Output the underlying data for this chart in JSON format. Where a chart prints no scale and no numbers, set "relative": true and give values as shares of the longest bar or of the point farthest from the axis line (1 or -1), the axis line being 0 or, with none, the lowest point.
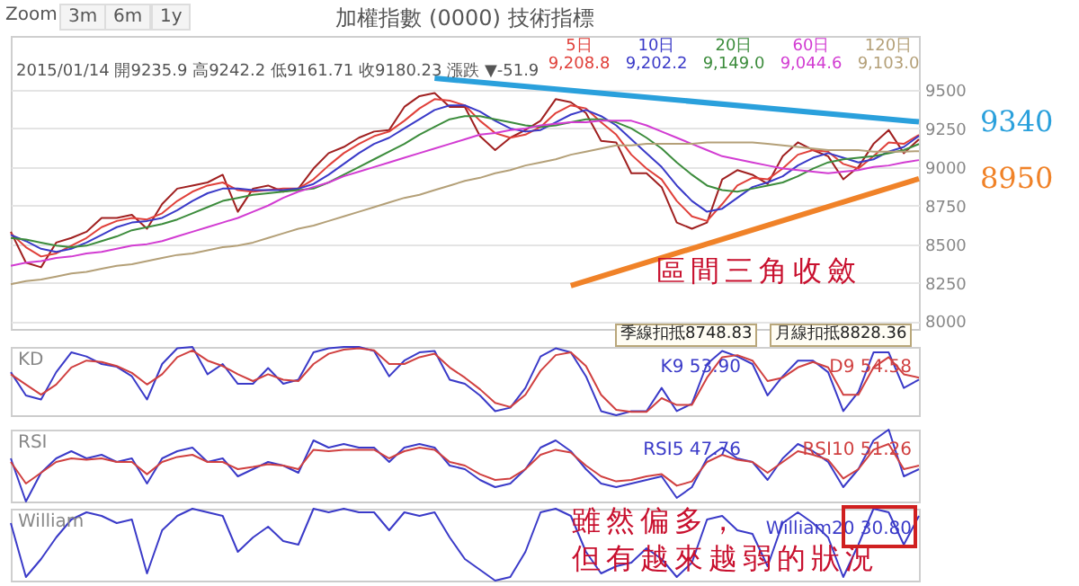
{
  "chart_data": [
    {
      "type": "line",
      "title": "加權指數 (0000) 技術指標",
      "categories": [
        null,
        null,
        null,
        null,
        null,
        null,
        null,
        null,
        null,
        null,
        null,
        null,
        null,
        null,
        null,
        null,
        null,
        null,
        null,
        null,
        null,
        null,
        null,
        null,
        null,
        null,
        null,
        null,
        null,
        null,
        null,
        null,
        null,
        null,
        null,
        null,
        null,
        null,
        null,
        null,
        null,
        null,
        null,
        null,
        null,
        null,
        null,
        null,
        null,
        null,
        null,
        null,
        null,
        null,
        null,
        null,
        null,
        null,
        null,
        null,
        null
      ],
      "ylim": [
        7950,
        9850
      ],
      "yticks": [
        8000,
        8250,
        8500,
        8750,
        9000,
        9250,
        9500
      ],
      "grid": "y",
      "tick_labels": "y",
      "annotations": [
        "Zoom",
        "3m",
        "6m",
        "1y",
        "2015/01/14 開9235.9 高9242.2 低9161.71 收9180.23 漲跌 ▼-51.9",
        "區間三角收斂"
      ],
      "series": [
        {
          "color": "#a02020",
          "values": [
            8580,
            8380,
            8350,
            8510,
            8540,
            8580,
            8670,
            8670,
            8690,
            8600,
            8760,
            8860,
            8880,
            8900,
            8950,
            8710,
            8860,
            8880,
            8840,
            8860,
            8990,
            9090,
            9130,
            9190,
            9230,
            9240,
            9390,
            9460,
            9480,
            9390,
            9390,
            9200,
            9110,
            9190,
            9240,
            9300,
            9440,
            9420,
            9350,
            9170,
            9160,
            8960,
            8960,
            8870,
            8640,
            8600,
            8640,
            8920,
            8980,
            8950,
            8890,
            9070,
            9160,
            9110,
            9070,
            8920,
            9000,
            9150,
            9240,
            9090,
            9180
          ]
        },
        {
          "name": "5日 9,208.8",
          "color": "#e0403a",
          "values": [
            8570,
            8480,
            8420,
            8440,
            8490,
            8540,
            8610,
            8650,
            8670,
            8660,
            8700,
            8780,
            8840,
            8880,
            8900,
            8850,
            8840,
            8850,
            8860,
            8860,
            8920,
            9010,
            9090,
            9150,
            9200,
            9230,
            9300,
            9380,
            9440,
            9430,
            9400,
            9300,
            9220,
            9190,
            9210,
            9260,
            9350,
            9400,
            9380,
            9290,
            9210,
            9080,
            8990,
            8920,
            8780,
            8680,
            8650,
            8760,
            8880,
            8930,
            8920,
            8990,
            9080,
            9110,
            9100,
            9020,
            8990,
            9070,
            9160,
            9150,
            9209
          ]
        },
        {
          "name": "10日 9,202.2",
          "color": "#3a3ac8",
          "values": [
            8560,
            8520,
            8470,
            8450,
            8470,
            8510,
            8560,
            8610,
            8640,
            8650,
            8670,
            8720,
            8780,
            8830,
            8860,
            8860,
            8850,
            8850,
            8850,
            8860,
            8890,
            8950,
            9020,
            9090,
            9150,
            9190,
            9250,
            9310,
            9370,
            9400,
            9400,
            9360,
            9300,
            9250,
            9230,
            9240,
            9290,
            9340,
            9370,
            9330,
            9270,
            9180,
            9090,
            9000,
            8880,
            8780,
            8710,
            8730,
            8800,
            8870,
            8900,
            8940,
            9010,
            9060,
            9090,
            9060,
            9030,
            9050,
            9100,
            9130,
            9202
          ]
        },
        {
          "name": "20日 9,149.0",
          "color": "#3c8c3c",
          "values": [
            8540,
            8530,
            8510,
            8490,
            8480,
            8490,
            8520,
            8550,
            8590,
            8610,
            8630,
            8660,
            8700,
            8740,
            8780,
            8800,
            8820,
            8830,
            8840,
            8850,
            8860,
            8900,
            8950,
            9000,
            9050,
            9100,
            9150,
            9210,
            9260,
            9310,
            9330,
            9330,
            9310,
            9290,
            9270,
            9260,
            9270,
            9290,
            9310,
            9310,
            9290,
            9250,
            9190,
            9120,
            9030,
            8950,
            8880,
            8850,
            8840,
            8860,
            8880,
            8900,
            8940,
            8990,
            9030,
            9050,
            9060,
            9070,
            9090,
            9110,
            9149
          ]
        },
        {
          "name": "60日 9,044.6",
          "color": "#d23cd2",
          "values": [
            8360,
            8380,
            8390,
            8410,
            8420,
            8440,
            8450,
            8470,
            8490,
            8500,
            8520,
            8550,
            8580,
            8610,
            8640,
            8670,
            8710,
            8750,
            8800,
            8840,
            8870,
            8900,
            8940,
            8970,
            9000,
            9030,
            9060,
            9090,
            9120,
            9150,
            9180,
            9210,
            9220,
            9240,
            9250,
            9270,
            9280,
            9290,
            9290,
            9300,
            9300,
            9300,
            9270,
            9230,
            9190,
            9150,
            9110,
            9070,
            9050,
            9030,
            9010,
            8990,
            8980,
            8970,
            8960,
            8970,
            8980,
            9000,
            9010,
            9030,
            9045
          ]
        },
        {
          "name": "120日 9,103.0",
          "color": "#b4a078",
          "values": [
            8240,
            8260,
            8270,
            8290,
            8310,
            8320,
            8340,
            8360,
            8370,
            8390,
            8410,
            8430,
            8440,
            8460,
            8480,
            8490,
            8510,
            8540,
            8570,
            8600,
            8620,
            8650,
            8680,
            8710,
            8740,
            8770,
            8800,
            8820,
            8850,
            8880,
            8910,
            8930,
            8960,
            8980,
            9010,
            9030,
            9050,
            9080,
            9100,
            9120,
            9140,
            9140,
            9150,
            9150,
            9150,
            9150,
            9160,
            9160,
            9160,
            9160,
            9150,
            9140,
            9130,
            9120,
            9110,
            9110,
            9110,
            9100,
            9100,
            9100,
            9103
          ]
        },
        {
          "name": "9340",
          "color": "#2aa0dc",
          "values": [
            null,
            null,
            null,
            null,
            null,
            null,
            null,
            null,
            null,
            null,
            null,
            null,
            null,
            null,
            null,
            null,
            null,
            null,
            null,
            null,
            null,
            null,
            null,
            null,
            null,
            null,
            null,
            null,
            9576,
            null,
            null,
            null,
            null,
            null,
            null,
            null,
            null,
            null,
            null,
            null,
            null,
            null,
            null,
            null,
            null,
            null,
            null,
            null,
            null,
            null,
            null,
            null,
            null,
            null,
            null,
            null,
            null,
            null,
            null,
            null,
            9293
          ]
        },
        {
          "name": "8950",
          "color": "#f08228",
          "values": [
            null,
            null,
            null,
            null,
            null,
            null,
            null,
            null,
            null,
            null,
            null,
            null,
            null,
            null,
            null,
            null,
            null,
            null,
            null,
            null,
            null,
            null,
            null,
            null,
            null,
            null,
            null,
            null,
            null,
            null,
            null,
            null,
            null,
            null,
            null,
            null,
            null,
            8230,
            null,
            null,
            null,
            null,
            null,
            null,
            null,
            null,
            null,
            null,
            null,
            null,
            null,
            null,
            null,
            null,
            null,
            null,
            null,
            null,
            null,
            null,
            8924
          ]
        }
      ]
    },
    {
      "type": "line",
      "title": "KD",
      "relative": true,
      "tick_labels": false,
      "categories": [
        null,
        null,
        null,
        null,
        null,
        null,
        null,
        null,
        null,
        null,
        null,
        null,
        null,
        null,
        null,
        null,
        null,
        null,
        null,
        null,
        null,
        null,
        null,
        null,
        null,
        null,
        null,
        null,
        null,
        null,
        null,
        null,
        null,
        null,
        null,
        null,
        null,
        null,
        null,
        null,
        null,
        null,
        null,
        null,
        null,
        null,
        null,
        null,
        null,
        null,
        null,
        null,
        null,
        null,
        null,
        null,
        null,
        null,
        null,
        null,
        null
      ],
      "annotations": [
        "季線扣抵8748.83",
        "月線扣抵8828.36"
      ],
      "series": [
        {
          "name": "K9 53.90",
          "color": "#3a3ac8",
          "values": [
            0.63,
            0.29,
            0.23,
            0.63,
            0.92,
            0.86,
            0.75,
            0.71,
            0.57,
            0.23,
            0.75,
            0.98,
            1,
            0.6,
            0.75,
            0.46,
            0.46,
            0.69,
            0.46,
            0.52,
            0.92,
            0.98,
            1,
            1,
            0.94,
            0.57,
            0.8,
            0.92,
            0.94,
            0.52,
            0.46,
            0.29,
            0.06,
            0.11,
            0.4,
            0.86,
            0.98,
            0.92,
            0.57,
            0.06,
            0,
            0.06,
            0.06,
            0.4,
            0.06,
            0.17,
            0.75,
            0.94,
            0.86,
            0.75,
            0.29,
            0.57,
            0.8,
            0.8,
            0.63,
            0.06,
            0.34,
            0.92,
            0.92,
            0.4,
            0.52
          ]
        },
        {
          "name": "D9 54.58",
          "color": "#d04040",
          "values": [
            0.6,
            0.45,
            0.3,
            0.45,
            0.7,
            0.8,
            0.78,
            0.72,
            0.62,
            0.45,
            0.6,
            0.85,
            0.95,
            0.8,
            0.72,
            0.6,
            0.5,
            0.6,
            0.52,
            0.5,
            0.75,
            0.9,
            0.96,
            0.98,
            0.95,
            0.75,
            0.75,
            0.85,
            0.9,
            0.7,
            0.55,
            0.38,
            0.18,
            0.12,
            0.3,
            0.65,
            0.88,
            0.92,
            0.72,
            0.3,
            0.08,
            0.05,
            0.05,
            0.25,
            0.15,
            0.15,
            0.55,
            0.85,
            0.88,
            0.8,
            0.5,
            0.55,
            0.7,
            0.78,
            0.7,
            0.3,
            0.3,
            0.7,
            0.85,
            0.6,
            0.55
          ]
        }
      ]
    },
    {
      "type": "line",
      "title": "RSI",
      "relative": true,
      "tick_labels": false,
      "categories": [
        null,
        null,
        null,
        null,
        null,
        null,
        null,
        null,
        null,
        null,
        null,
        null,
        null,
        null,
        null,
        null,
        null,
        null,
        null,
        null,
        null,
        null,
        null,
        null,
        null,
        null,
        null,
        null,
        null,
        null,
        null,
        null,
        null,
        null,
        null,
        null,
        null,
        null,
        null,
        null,
        null,
        null,
        null,
        null,
        null,
        null,
        null,
        null,
        null,
        null,
        null,
        null,
        null,
        null,
        null,
        null,
        null,
        null,
        null,
        null,
        null
      ],
      "series": [
        {
          "name": "RSI5 47.76",
          "color": "#3a3ac8",
          "values": [
            0.6,
            0,
            0.4,
            0.6,
            0.7,
            0.6,
            0.65,
            0.55,
            0.6,
            0.25,
            0.6,
            0.7,
            0.75,
            0.55,
            0.6,
            0.35,
            0.45,
            0.55,
            0.5,
            0.4,
            0.85,
            0.75,
            0.8,
            0.75,
            0.75,
            0.55,
            0.75,
            0.8,
            0.75,
            0.5,
            0.45,
            0.3,
            0.2,
            0.25,
            0.45,
            0.75,
            0.85,
            0.7,
            0.45,
            0.25,
            0.2,
            0.25,
            0.3,
            0.35,
            0.05,
            0.2,
            0.6,
            0.75,
            0.6,
            0.55,
            0.3,
            0.6,
            0.8,
            0.7,
            0.55,
            0.2,
            0.45,
            0.85,
            1,
            0.35,
            0.45
          ]
        },
        {
          "name": "RSI10 51.26",
          "color": "#d04040",
          "values": [
            0.55,
            0.25,
            0.4,
            0.55,
            0.6,
            0.58,
            0.6,
            0.55,
            0.55,
            0.38,
            0.55,
            0.62,
            0.65,
            0.55,
            0.55,
            0.45,
            0.48,
            0.52,
            0.5,
            0.45,
            0.72,
            0.7,
            0.72,
            0.72,
            0.72,
            0.6,
            0.7,
            0.75,
            0.72,
            0.55,
            0.5,
            0.38,
            0.3,
            0.32,
            0.45,
            0.65,
            0.72,
            0.68,
            0.5,
            0.35,
            0.28,
            0.3,
            0.35,
            0.38,
            0.22,
            0.28,
            0.55,
            0.65,
            0.58,
            0.55,
            0.4,
            0.55,
            0.7,
            0.65,
            0.58,
            0.32,
            0.45,
            0.72,
            0.8,
            0.45,
            0.5
          ]
        }
      ]
    },
    {
      "type": "line",
      "title": "William",
      "relative": true,
      "tick_labels": false,
      "categories": [
        null,
        null,
        null,
        null,
        null,
        null,
        null,
        null,
        null,
        null,
        null,
        null,
        null,
        null,
        null,
        null,
        null,
        null,
        null,
        null,
        null,
        null,
        null,
        null,
        null,
        null,
        null,
        null,
        null,
        null,
        null,
        null,
        null,
        null,
        null,
        null,
        null,
        null,
        null,
        null,
        null,
        null,
        null,
        null,
        null,
        null,
        null,
        null,
        null,
        null,
        null,
        null,
        null,
        null,
        null,
        null,
        null,
        null,
        null,
        null,
        null
      ],
      "annotations": [
        "雖然偏多，",
        "但有越來越弱的狀況"
      ],
      "series": [
        {
          "name": "William20 30.80",
          "color": "#3a3ac8",
          "values": [
            0.8,
            0.05,
            0.3,
            0.6,
            0.85,
            0.95,
            0.9,
            0.8,
            0.85,
            0.1,
            0.7,
            0.9,
            1,
            0.95,
            0.9,
            0.4,
            0.6,
            0.75,
            0.55,
            0.5,
            1,
            0.95,
            1,
            0.95,
            0.95,
            0.7,
            0.95,
            0.9,
            0.95,
            0.6,
            0.3,
            0.15,
            0,
            0.05,
            0.4,
            0.95,
            1,
            0.9,
            0.4,
            0.1,
            0.2,
            0.25,
            0.45,
            0.3,
            0.05,
            0.25,
            0.85,
            0.9,
            0.7,
            0.65,
            0.2,
            0.8,
            0.95,
            0.8,
            0.6,
            0.05,
            0.5,
            1,
            0.95,
            0.5,
            0.9
          ]
        }
      ]
    }
  ]
}
